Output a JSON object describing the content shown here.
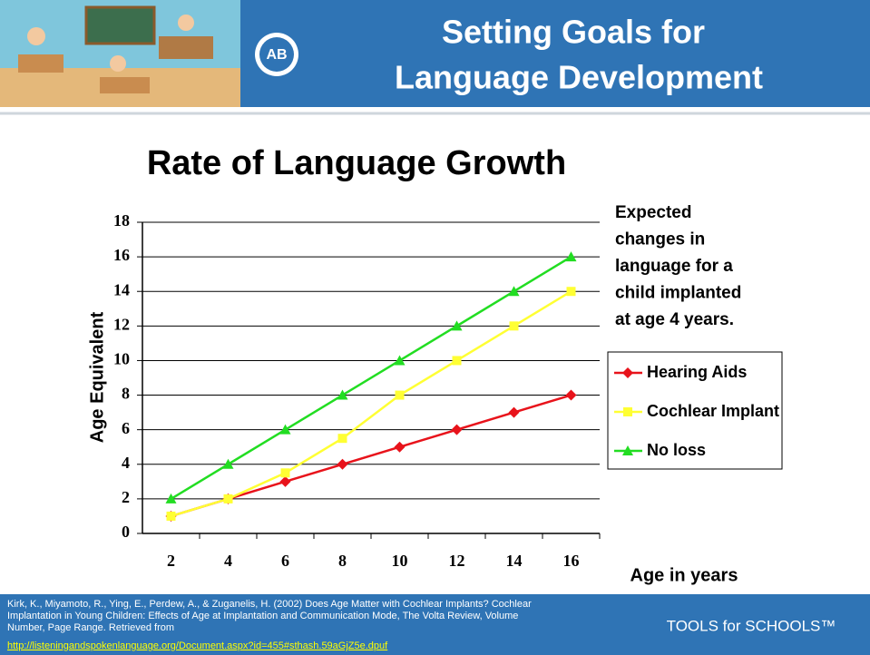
{
  "header": {
    "title_lines": [
      "Setting Goals for",
      "Language Development"
    ],
    "logo": "AB"
  },
  "chart_data": {
    "type": "line",
    "title": "Rate of Language Growth",
    "categories": [
      "2",
      "4",
      "6",
      "8",
      "10",
      "12",
      "14",
      "16"
    ],
    "series": [
      {
        "name": "Hearing Aids",
        "color": "#e8131b",
        "marker": "diamond",
        "values": [
          1,
          2,
          3,
          4,
          5,
          6,
          7,
          8
        ]
      },
      {
        "name": "Cochlear Implant",
        "color": "#ffff33",
        "marker": "square",
        "values": [
          1,
          2,
          3.5,
          5.5,
          8,
          10,
          12,
          14
        ]
      },
      {
        "name": "No loss",
        "color": "#22dd22",
        "marker": "triangle",
        "values": [
          2,
          4,
          6,
          8,
          10,
          12,
          14,
          16
        ]
      }
    ],
    "ylim": [
      0,
      18
    ],
    "yticks": [
      0,
      2,
      4,
      6,
      8,
      10,
      12,
      14,
      16,
      18
    ],
    "grid": true,
    "y_label": "Age Equivalent",
    "x_label": "Age in years",
    "legend": "right",
    "annotation_lines": [
      "Expected",
      "changes in",
      "language for a",
      "child implanted",
      "at age 4 years."
    ]
  },
  "footer": {
    "citation_lines": [
      "Kirk, K., Miyamoto, R., Ying, E., Perdew, A., & Zuganelis, H. (2002) Does Age Matter with Cochlear Implants? Cochlear",
      "Implantation in Young Children: Effects of Age at Implantation and Communication Mode, The Volta Review, Volume",
      "Number, Page Range. Retrieved from"
    ],
    "link": "http://listeningandspokenlanguage.org/Document.aspx?id=455#sthash.59aGjZ5e.dpuf",
    "brand": "TOOLS for SCHOOLS™"
  }
}
